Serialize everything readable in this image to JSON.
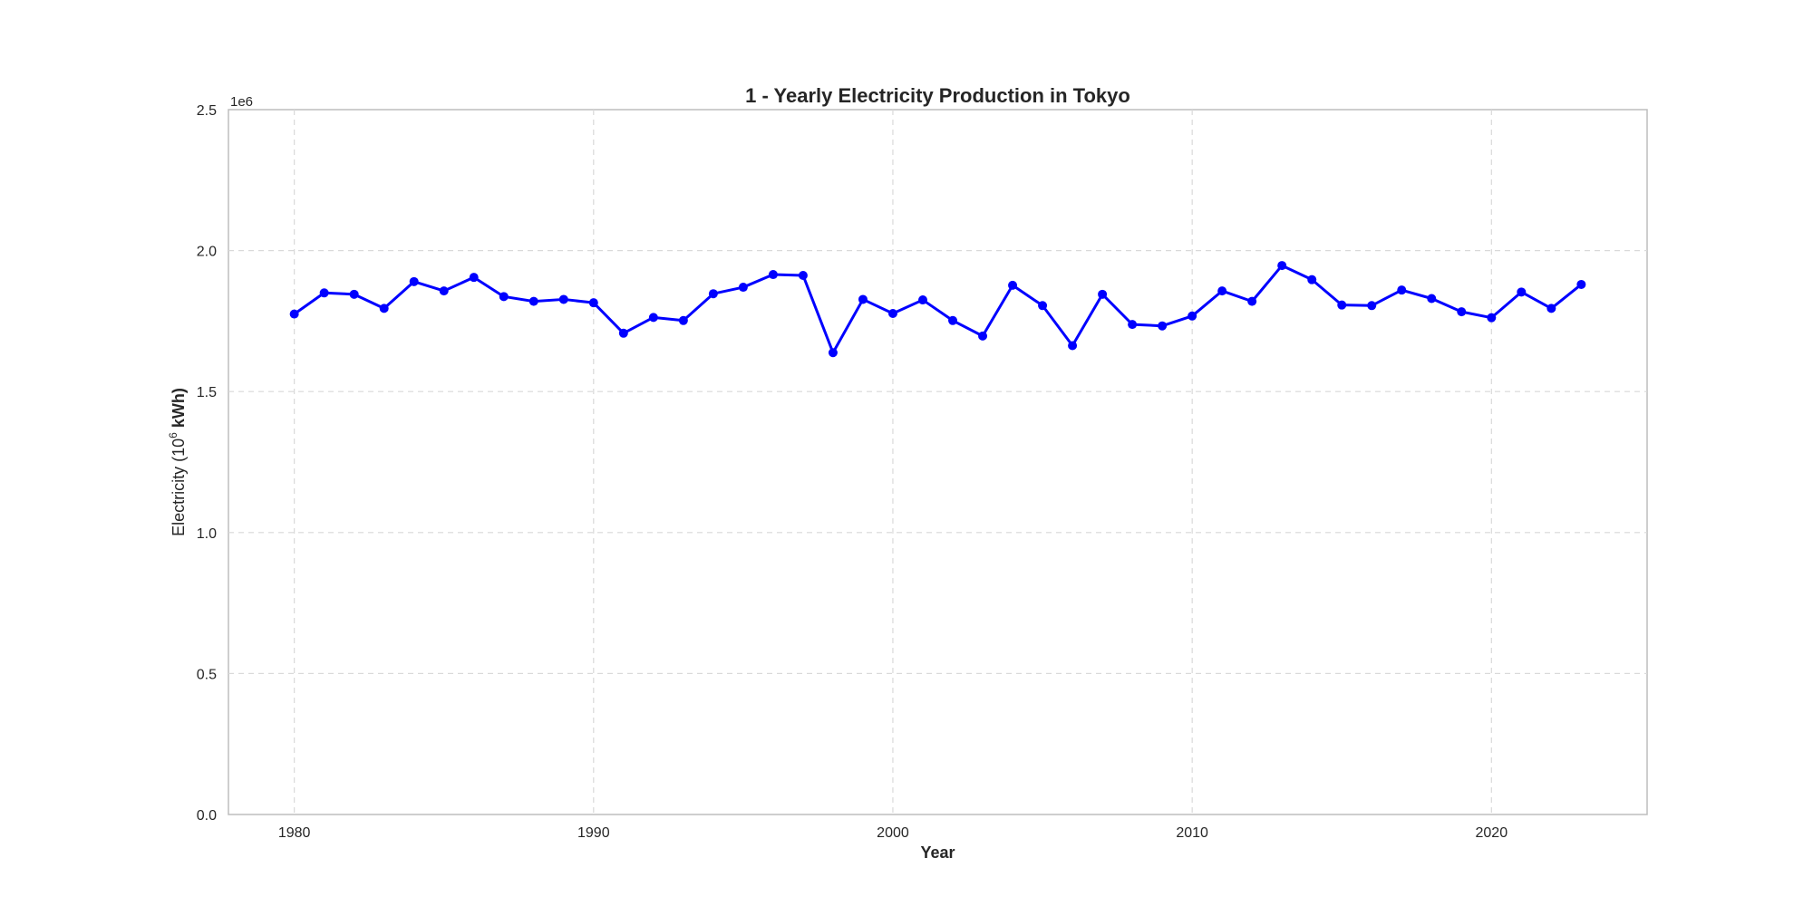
{
  "chart_data": {
    "type": "line",
    "title": "1 - Yearly Electricity Production in Tokyo",
    "xlabel": "Year",
    "ylabel_main": "Electricity (10",
    "ylabel_sup": "6",
    "ylabel_tail": " kWh)",
    "y_offset_label": "1e6",
    "xlim": [
      1977.8,
      2025.2
    ],
    "ylim": [
      0,
      2500000
    ],
    "x_ticks": [
      1980,
      1990,
      2000,
      2010,
      2020
    ],
    "x_tick_labels": [
      "1980",
      "1990",
      "2000",
      "2010",
      "2020"
    ],
    "y_ticks": [
      0,
      500000,
      1000000,
      1500000,
      2000000,
      2500000
    ],
    "y_tick_labels": [
      "0.0",
      "0.5",
      "1.0",
      "1.5",
      "2.0",
      "2.5"
    ],
    "grid": true,
    "color": "#0000ff",
    "series": [
      {
        "x": [
          1980,
          1981,
          1982,
          1983,
          1984,
          1985,
          1986,
          1987,
          1988,
          1989,
          1990,
          1991,
          1992,
          1993,
          1994,
          1995,
          1996,
          1997,
          1998,
          1999,
          2000,
          2001,
          2002,
          2003,
          2004,
          2005,
          2006,
          2007,
          2008,
          2009,
          2010,
          2011,
          2012,
          2013,
          2014,
          2015,
          2016,
          2017,
          2018,
          2019,
          2020,
          2021,
          2022,
          2023
        ],
        "values": [
          1775000,
          1850000,
          1845000,
          1795000,
          1890000,
          1857000,
          1905000,
          1837000,
          1820000,
          1827000,
          1815000,
          1707000,
          1763000,
          1752000,
          1847000,
          1870000,
          1915000,
          1912000,
          1638000,
          1827000,
          1777000,
          1825000,
          1752000,
          1697000,
          1877000,
          1805000,
          1663000,
          1845000,
          1738000,
          1733000,
          1768000,
          1857000,
          1820000,
          1947000,
          1897000,
          1807000,
          1805000,
          1860000,
          1830000,
          1783000,
          1762000,
          1853000,
          1795000,
          1880000
        ]
      }
    ]
  }
}
